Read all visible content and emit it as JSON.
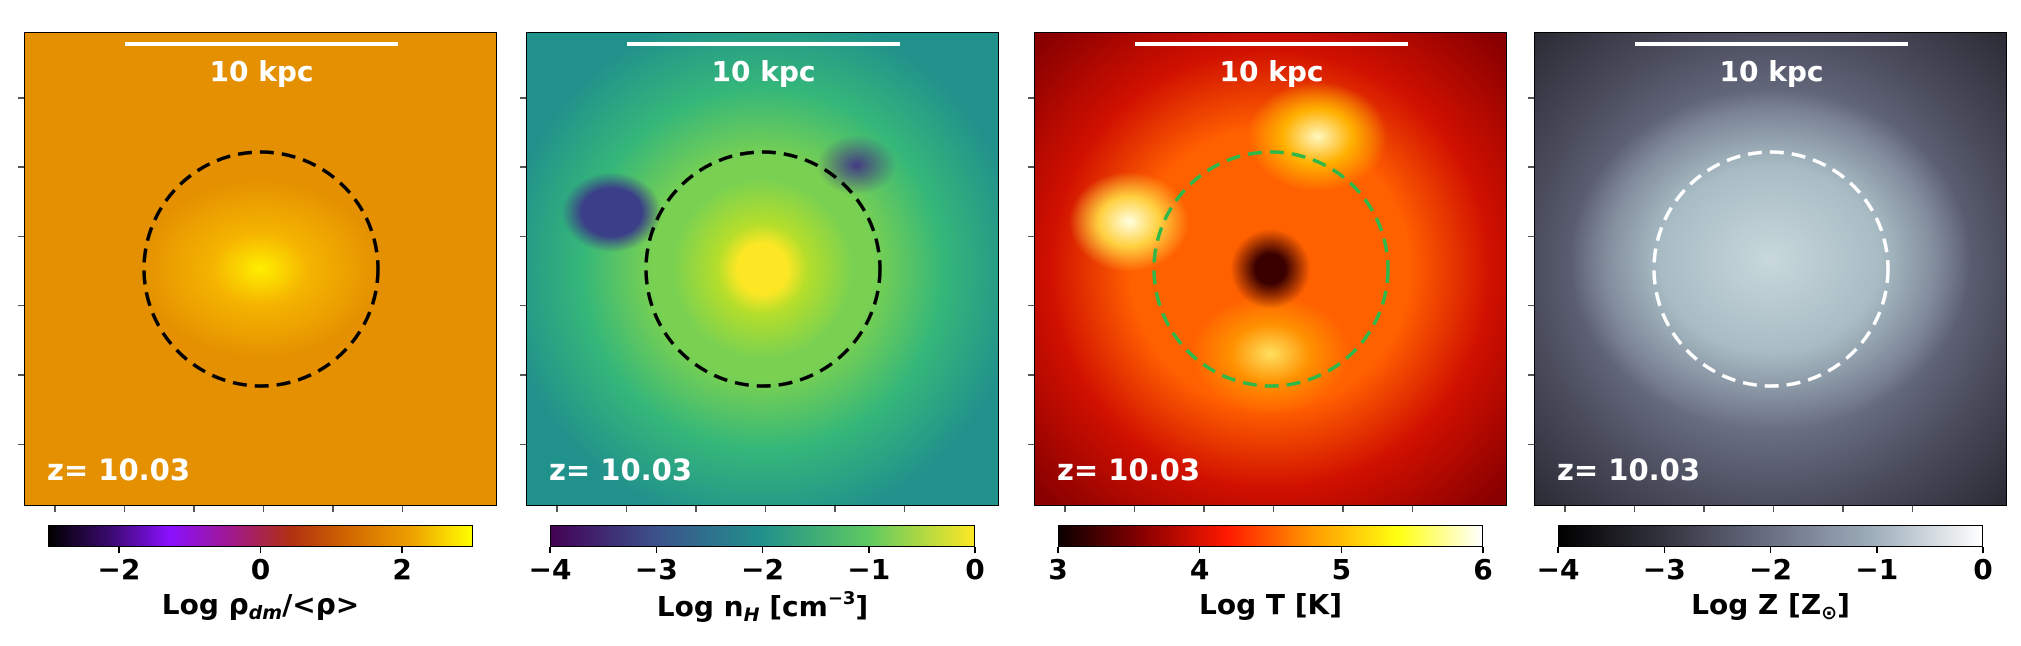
{
  "panels": [
    {
      "scale_bar": "10 kpc",
      "redshift": "z= 10.03",
      "circle_color": "#000000",
      "colormap": [
        "#000000",
        "#3a0a6e",
        "#8a10ff",
        "#a01890",
        "#b03010",
        "#d26a00",
        "#eea000",
        "#ffff00"
      ],
      "colorbar": {
        "range": [
          -3,
          3
        ],
        "ticks": [
          "−2",
          "0",
          "2"
        ],
        "tick_values": [
          -2,
          0,
          2
        ],
        "label_main": "Log ρ",
        "label_sub": "dm",
        "label_tail": "/<ρ>"
      }
    },
    {
      "scale_bar": "10 kpc",
      "redshift": "z= 10.03",
      "circle_color": "#000000",
      "colormap": [
        "#440154",
        "#3b528b",
        "#21918c",
        "#5ec962",
        "#fde725"
      ],
      "colorbar": {
        "range": [
          -4,
          0
        ],
        "ticks": [
          "−4",
          "−3",
          "−2",
          "−1",
          "0"
        ],
        "tick_values": [
          -4,
          -3,
          -2,
          -1,
          0
        ],
        "label_main": "Log n",
        "label_sub": "H",
        "label_tail": " [cm",
        "label_sup": "−3",
        "label_end": "]"
      }
    },
    {
      "scale_bar": "10 kpc",
      "redshift": "z= 10.03",
      "circle_color": "#2eb84a",
      "colormap": [
        "#0a0000",
        "#8a0000",
        "#ff1a00",
        "#ff9a00",
        "#ffff10",
        "#ffffff"
      ],
      "colorbar": {
        "range": [
          3,
          6
        ],
        "ticks": [
          "3",
          "4",
          "5",
          "6"
        ],
        "tick_values": [
          3,
          4,
          5,
          6
        ],
        "label_main": "Log T [K]"
      }
    },
    {
      "scale_bar": "10 kpc",
      "redshift": "z= 10.03",
      "circle_color": "#ffffff",
      "colormap": [
        "#000000",
        "#34343f",
        "#6a6f84",
        "#a0b0bc",
        "#ffffff"
      ],
      "colorbar": {
        "range": [
          -4,
          0
        ],
        "ticks": [
          "−4",
          "−3",
          "−2",
          "−1",
          "0"
        ],
        "tick_values": [
          -4,
          -3,
          -2,
          -1,
          0
        ],
        "label_main": "Log Z [Z",
        "label_sub_sun": "⊙",
        "label_end": "]"
      }
    }
  ]
}
